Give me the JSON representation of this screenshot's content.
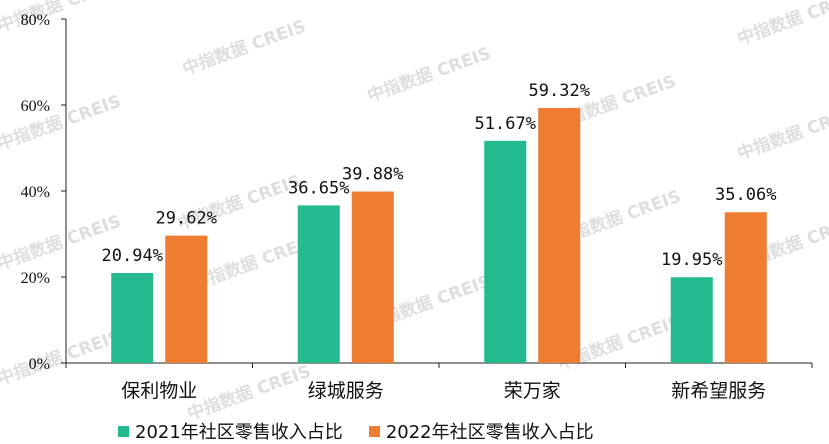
{
  "chart_data": {
    "type": "bar",
    "categories": [
      "保利物业",
      "绿城服务",
      "荣万家",
      "新希望服务"
    ],
    "series": [
      {
        "name": "2021年社区零售收入占比",
        "values": [
          20.94,
          36.65,
          51.67,
          19.95
        ],
        "labels": [
          "20.94%",
          "36.65%",
          "51.67%",
          "19.95%"
        ],
        "color": "#24b98f"
      },
      {
        "name": "2022年社区零售收入占比",
        "values": [
          29.62,
          39.88,
          59.32,
          35.06
        ],
        "labels": [
          "29.62%",
          "39.88%",
          "59.32%",
          "35.06%"
        ],
        "color": "#ee7d31"
      }
    ],
    "ylim": [
      0,
      80
    ],
    "yticks": [
      "0%",
      "20%",
      "40%",
      "60%",
      "80%"
    ],
    "ytick_values": [
      0,
      20,
      40,
      60,
      80
    ],
    "grid": false,
    "legend_position": "bottom"
  },
  "watermark": "中指数据 CREIS"
}
